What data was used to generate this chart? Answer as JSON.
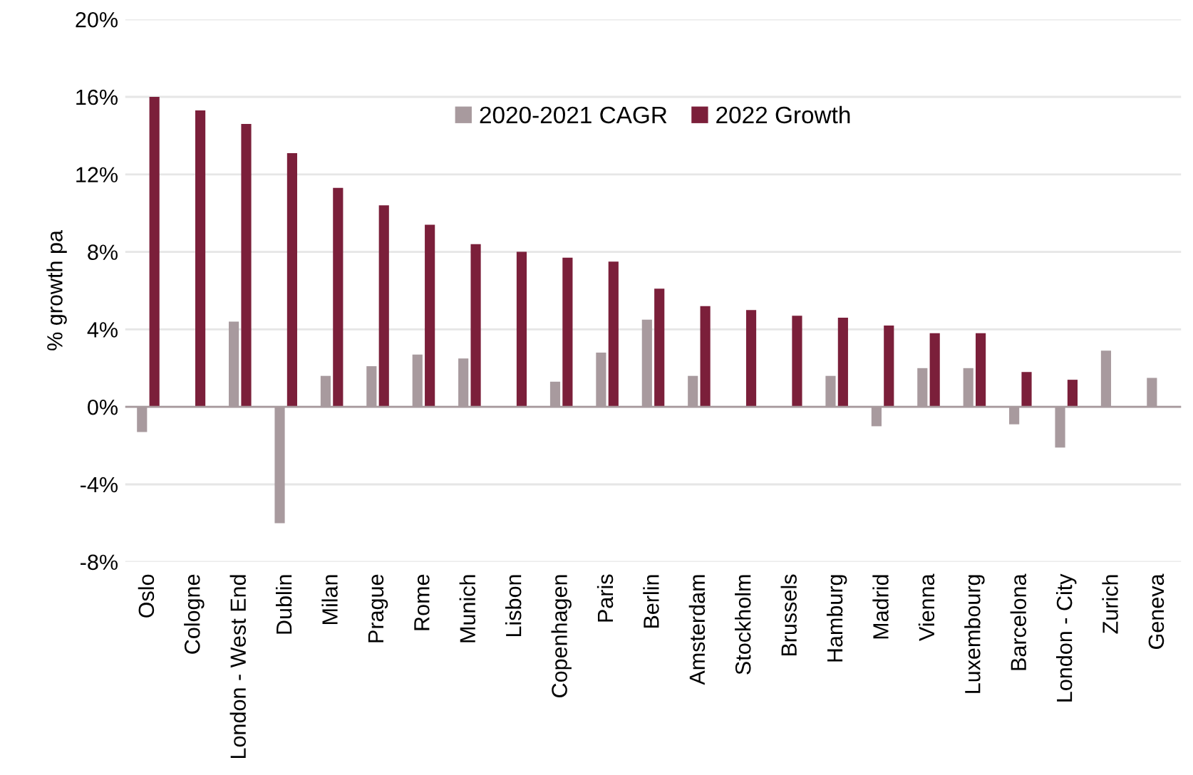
{
  "chart_data": {
    "type": "bar",
    "ylabel": "% growth pa",
    "categories": [
      "Oslo",
      "Cologne",
      "London - West End",
      "Dublin",
      "Milan",
      "Prague",
      "Rome",
      "Munich",
      "Lisbon",
      "Copenhagen",
      "Paris",
      "Berlin",
      "Amsterdam",
      "Stockholm",
      "Brussels",
      "Hamburg",
      "Madrid",
      "Vienna",
      "Luxembourg",
      "Barcelona",
      "London - City",
      "Zurich",
      "Geneva"
    ],
    "series": [
      {
        "name": "2020-2021 CAGR",
        "color": "#a89a9e",
        "values": [
          -1.3,
          null,
          4.4,
          -6.0,
          1.6,
          2.1,
          2.7,
          2.5,
          null,
          1.3,
          2.8,
          4.5,
          1.6,
          null,
          null,
          1.6,
          -1.0,
          2.0,
          2.0,
          -0.9,
          -2.1,
          2.9,
          1.5
        ]
      },
      {
        "name": "2022 Growth",
        "color": "#7b1f3a",
        "values": [
          16.0,
          15.3,
          14.6,
          13.1,
          11.3,
          10.4,
          9.4,
          8.4,
          8.0,
          7.7,
          7.5,
          6.1,
          5.2,
          5.0,
          4.7,
          4.6,
          4.2,
          3.8,
          3.8,
          1.8,
          1.4,
          null,
          null
        ]
      }
    ],
    "ylim": [
      -8,
      20
    ],
    "yticks": [
      {
        "value": -8,
        "label": "-8%"
      },
      {
        "value": -4,
        "label": "-4%"
      },
      {
        "value": 0,
        "label": "0%"
      },
      {
        "value": 4,
        "label": "4%"
      },
      {
        "value": 8,
        "label": "8%"
      },
      {
        "value": 12,
        "label": "12%"
      },
      {
        "value": 16,
        "label": "16%"
      },
      {
        "value": 20,
        "label": "20%"
      }
    ],
    "grid": "y",
    "legend": "top"
  }
}
